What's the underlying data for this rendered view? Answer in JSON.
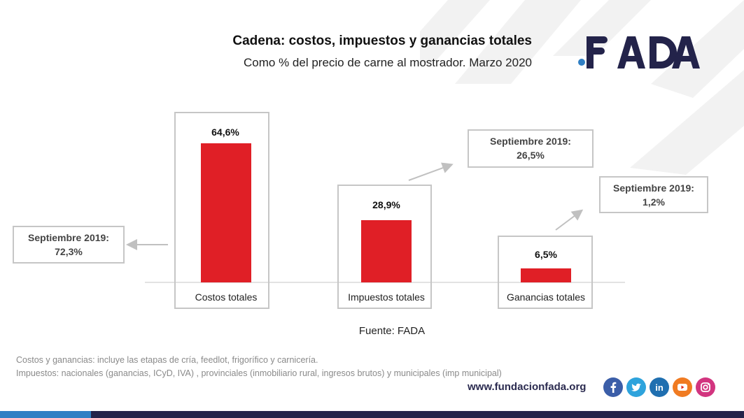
{
  "chart_data": {
    "type": "bar",
    "title": "Cadena: costos, impuestos y ganancias totales",
    "subtitle": "Como % del precio de carne al mostrador. Marzo 2020",
    "categories": [
      "Costos totales",
      "Impuestos totales",
      "Ganancias totales"
    ],
    "values": [
      64.6,
      28.9,
      6.5
    ],
    "value_labels": [
      "64,6%",
      "28,9%",
      "6,5%"
    ],
    "ylim": [
      0,
      72
    ],
    "bar_color": "#e01f26",
    "comparisons": [
      {
        "label": "Septiembre 2019:",
        "value": "72,3%",
        "direction": "down"
      },
      {
        "label": "Septiembre 2019:",
        "value": "26,5%",
        "direction": "up"
      },
      {
        "label": "Septiembre 2019:",
        "value": "1,2%",
        "direction": "up"
      }
    ],
    "source": "Fuente: FADA"
  },
  "brand": {
    "name": "FADA",
    "dark_color": "#23234a",
    "accent_color": "#2f7fc4"
  },
  "notes": [
    "Costos y ganancias: incluye las etapas de cría, feedlot, frigorífico y carnicería.",
    "Impuestos: nacionales (ganancias, ICyD, IVA) , provinciales (inmobiliario rural, ingresos brutos) y municipales (imp municipal)"
  ],
  "footer": {
    "url": "www.fundacionfada.org",
    "social_icons": [
      "facebook-icon",
      "twitter-icon",
      "linkedin-icon",
      "youtube-icon",
      "instagram-icon"
    ]
  }
}
